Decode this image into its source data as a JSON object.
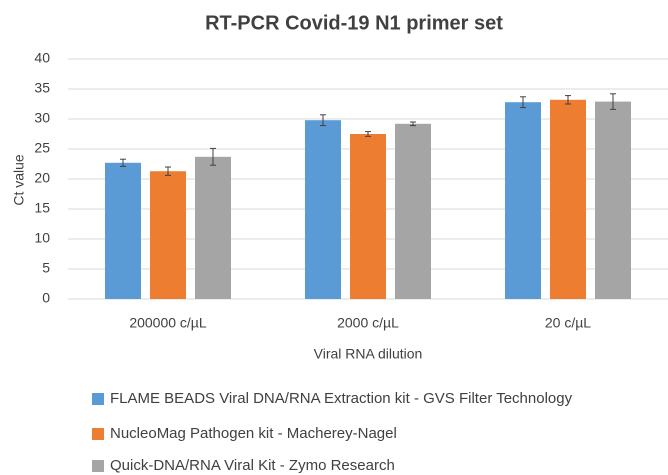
{
  "chart_data": {
    "type": "bar",
    "title": "RT-PCR Covid-19 N1 primer set",
    "x_label": "Viral RNA dilution",
    "y_label": "Ct value",
    "categories": [
      "200000 c/µL",
      "2000 c/µL",
      "20 c/µL"
    ],
    "series": [
      {
        "name": "FLAME BEADS Viral DNA/RNA Extraction kit - GVS Filter Technology",
        "color": "#5b9bd5",
        "values": [
          22.7,
          29.8,
          32.8
        ],
        "errors": [
          0.6,
          0.9,
          0.9
        ]
      },
      {
        "name": "NucleoMag Pathogen kit - Macherey-Nagel",
        "color": "#ed7d31",
        "values": [
          21.3,
          27.5,
          33.2
        ],
        "errors": [
          0.7,
          0.4,
          0.7
        ]
      },
      {
        "name": "Quick-DNA/RNA Viral Kit - Zymo Research",
        "color": "#a5a5a5",
        "values": [
          23.7,
          29.2,
          32.9
        ],
        "errors": [
          1.4,
          0.3,
          1.3
        ]
      }
    ],
    "ylim": [
      0,
      40
    ],
    "yticks": [
      0,
      5,
      10,
      15,
      20,
      25,
      30,
      35,
      40
    ],
    "grid": true,
    "legend": "bottom"
  }
}
